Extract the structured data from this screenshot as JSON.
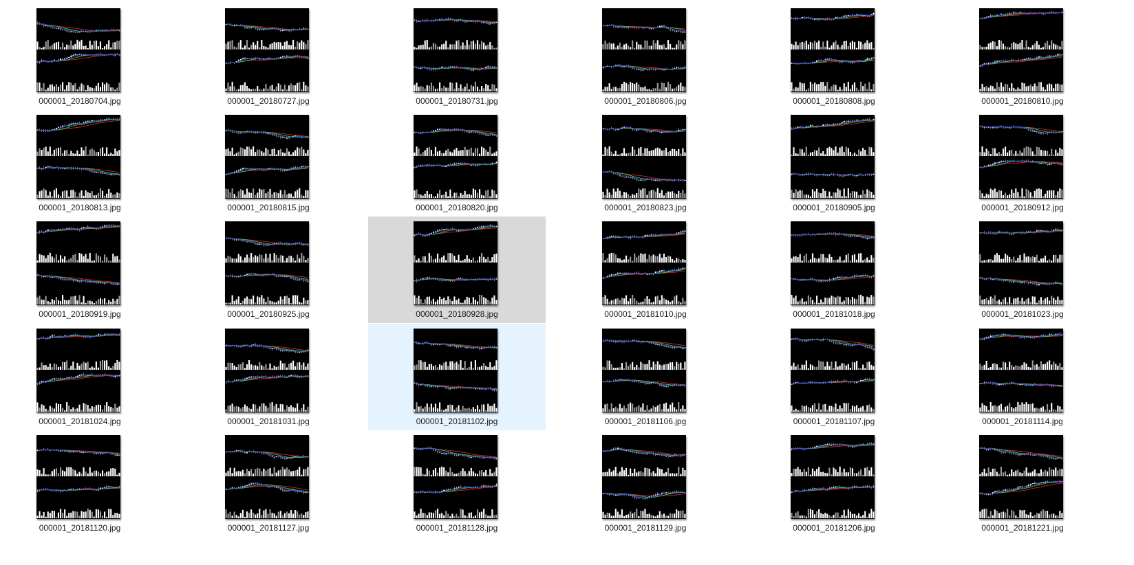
{
  "view": "large-icons",
  "files": [
    {
      "name": "000001_20180704.jpg"
    },
    {
      "name": "000001_20180727.jpg"
    },
    {
      "name": "000001_20180731.jpg"
    },
    {
      "name": "000001_20180806.jpg"
    },
    {
      "name": "000001_20180808.jpg"
    },
    {
      "name": "000001_20180810.jpg"
    },
    {
      "name": "000001_20180813.jpg"
    },
    {
      "name": "000001_20180815.jpg"
    },
    {
      "name": "000001_20180820.jpg"
    },
    {
      "name": "000001_20180823.jpg"
    },
    {
      "name": "000001_20180905.jpg"
    },
    {
      "name": "000001_20180912.jpg"
    },
    {
      "name": "000001_20180919.jpg"
    },
    {
      "name": "000001_20180925.jpg"
    },
    {
      "name": "000001_20180928.jpg",
      "state": "hovered"
    },
    {
      "name": "000001_20181010.jpg"
    },
    {
      "name": "000001_20181018.jpg"
    },
    {
      "name": "000001_20181023.jpg"
    },
    {
      "name": "000001_20181024.jpg"
    },
    {
      "name": "000001_20181031.jpg"
    },
    {
      "name": "000001_20181102.jpg",
      "state": "selected"
    },
    {
      "name": "000001_20181106.jpg"
    },
    {
      "name": "000001_20181107.jpg"
    },
    {
      "name": "000001_20181114.jpg"
    },
    {
      "name": "000001_20181120.jpg"
    },
    {
      "name": "000001_20181127.jpg"
    },
    {
      "name": "000001_20181128.jpg"
    },
    {
      "name": "000001_20181129.jpg"
    },
    {
      "name": "000001_20181206.jpg"
    },
    {
      "name": "000001_20181221.jpg"
    }
  ],
  "colors": {
    "hover_bg": "#d9d9d9",
    "selected_bg": "#e5f3ff",
    "thumbnail_bg": "#000000",
    "ma_red": "#e02020",
    "ma_green": "#33cc33",
    "ma_blue": "#3344ff",
    "ma_yellow": "#dddd22"
  }
}
